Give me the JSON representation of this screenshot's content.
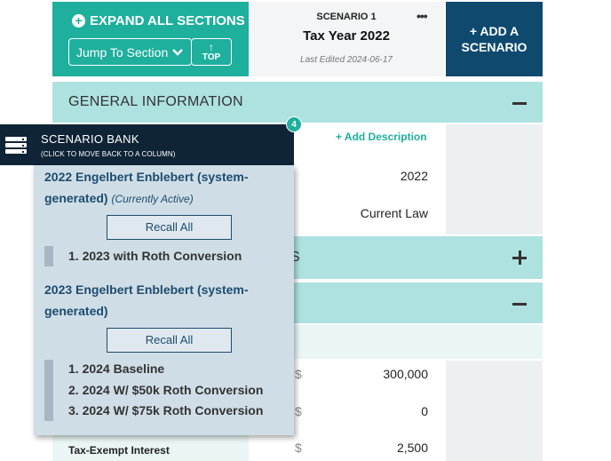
{
  "header": {
    "expand_label": "EXPAND ALL SECTIONS",
    "jump_label": "Jump To Section",
    "top_label": "TOP",
    "scenario_label": "SCENARIO 1",
    "scenario_title": "Tax Year 2022",
    "last_edited": "Last Edited 2024-06-17",
    "add_scenario_line1": "+ ADD A",
    "add_scenario_line2": "SCENARIO"
  },
  "sections": {
    "general_title": "GENERAL INFORMATION",
    "add_description": "+ Add Description",
    "tax_year_value": "2022",
    "law_value": "Current Law",
    "collapsed_fragment": "S"
  },
  "income": {
    "row1_currency": "$",
    "row1_value": "300,000",
    "row2_currency": "$",
    "row2_value": "0",
    "row3_label": "Tax-Exempt Interest",
    "row3_currency": "$",
    "row3_value": "2,500"
  },
  "bank": {
    "title": "SCENARIO BANK",
    "subtitle": "(CLICK TO MOVE BACK TO A COLUMN)",
    "badge": "4",
    "groups": [
      {
        "title": "2022 Engelbert Enblebert (system-generated)",
        "status": "(Currently Active)",
        "recall_label": "Recall All",
        "items": [
          "1. 2023 with Roth Conversion"
        ]
      },
      {
        "title": "2023 Engelbert Enblebert (system-generated)",
        "recall_label": "Recall All",
        "items": [
          "1. 2024 Baseline",
          "2. 2024 W/ $50k Roth Conversion",
          "3. 2024 W/ $75k Roth Conversion"
        ]
      }
    ]
  },
  "colors": {
    "teal": "#1faf9d",
    "navy": "#0f4a6e",
    "dark": "#0f2436",
    "section": "#aee2e0"
  }
}
